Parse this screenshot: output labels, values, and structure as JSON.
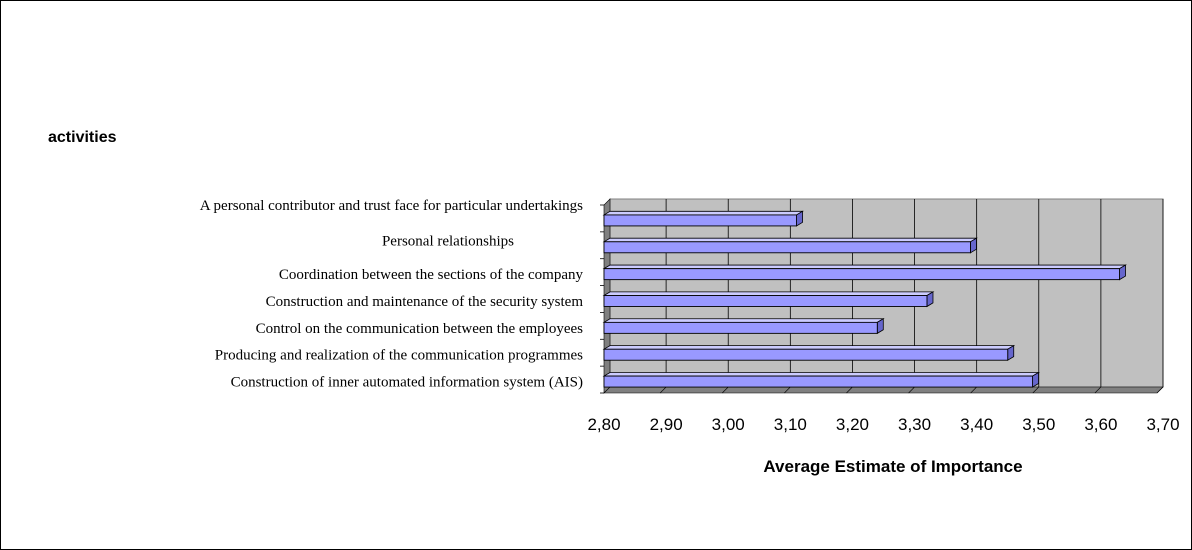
{
  "chart_data": {
    "type": "bar",
    "orientation": "horizontal",
    "title": "activities",
    "xlabel": "Average Estimate of Importance",
    "ylabel": "",
    "xlim": [
      2.8,
      3.7
    ],
    "x_ticks": [
      "2,80",
      "2,90",
      "3,00",
      "3,10",
      "3,20",
      "3,30",
      "3,40",
      "3,50",
      "3,60",
      "3,70"
    ],
    "categories": [
      "A personal contributor and trust face for particular undertakings",
      "Personal relationships",
      "Coordination between the sections of the company",
      "Construction and maintenance of the security system",
      "Control on the communication between the employees",
      "Producing and realization of the communication programmes",
      "Construction of inner automated information system (AIS)"
    ],
    "values": [
      3.11,
      3.39,
      3.63,
      3.32,
      3.24,
      3.45,
      3.49
    ],
    "grid": true,
    "colors": {
      "bar": "#9999ff",
      "bar_top": "#ccccff",
      "bar_side": "#6666cc",
      "plot_bg": "#c0c0c0",
      "wall": "#808080"
    }
  }
}
